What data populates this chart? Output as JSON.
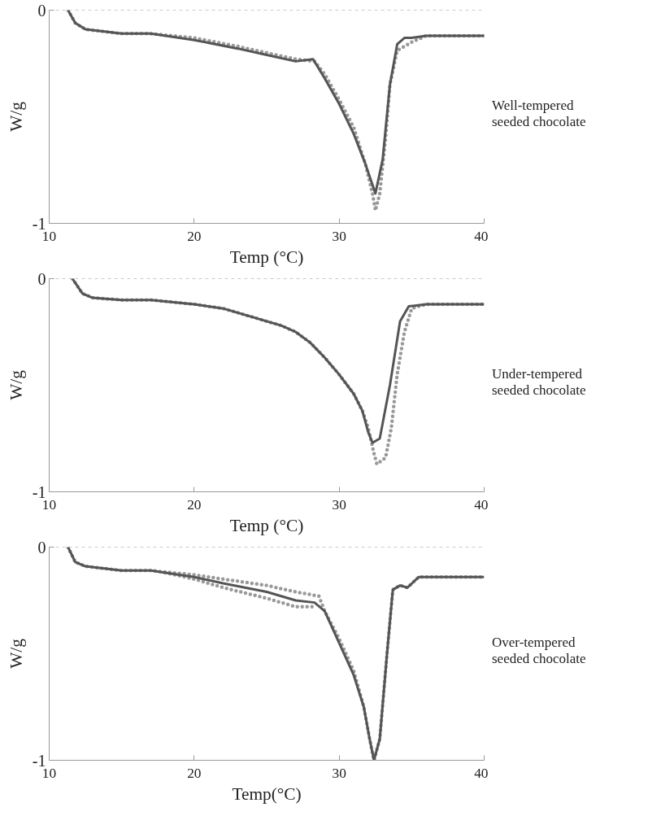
{
  "chart_data": [
    {
      "type": "line",
      "xlabel": "Temp (°C)",
      "ylabel": "W/g",
      "xlim": [
        10,
        40
      ],
      "ylim": [
        -1,
        0
      ],
      "xticks": [
        10,
        20,
        30,
        40
      ],
      "yticks": [
        0,
        -1
      ],
      "ref_lines": [
        {
          "axis": "y",
          "value": 0,
          "color": "#999999",
          "line_style": "dashed"
        }
      ],
      "annotations": [
        "Well-tempered\nseeded chocolate"
      ],
      "series": [
        {
          "color": "#999999",
          "line_style": "dotted",
          "x": [
            11.3,
            11.8,
            12.5,
            15,
            17,
            20,
            23,
            25,
            27,
            28.3,
            29,
            30,
            31,
            31.8,
            32.3,
            32.5,
            32.8,
            33.2,
            33.5,
            34,
            34.5,
            35,
            36,
            40
          ],
          "values": [
            0,
            -0.06,
            -0.09,
            -0.11,
            -0.11,
            -0.13,
            -0.17,
            -0.2,
            -0.23,
            -0.24,
            -0.3,
            -0.42,
            -0.55,
            -0.72,
            -0.86,
            -0.94,
            -0.86,
            -0.6,
            -0.35,
            -0.19,
            -0.17,
            -0.15,
            -0.12,
            -0.12
          ]
        },
        {
          "color": "#555555",
          "line_style": "solid",
          "x": [
            11.3,
            11.8,
            12.5,
            15,
            17,
            20,
            23,
            25,
            27,
            28.2,
            29,
            30,
            31,
            31.8,
            32.5,
            33,
            33.5,
            34,
            34.5,
            35,
            36,
            40
          ],
          "values": [
            0,
            -0.06,
            -0.09,
            -0.11,
            -0.11,
            -0.14,
            -0.18,
            -0.21,
            -0.24,
            -0.23,
            -0.32,
            -0.44,
            -0.58,
            -0.72,
            -0.86,
            -0.7,
            -0.35,
            -0.16,
            -0.13,
            -0.13,
            -0.12,
            -0.12
          ]
        }
      ]
    },
    {
      "type": "line",
      "xlabel": "Temp (°C)",
      "ylabel": "W/g",
      "xlim": [
        10,
        40
      ],
      "ylim": [
        -1,
        0
      ],
      "xticks": [
        10,
        20,
        30,
        40
      ],
      "yticks": [
        0,
        -1
      ],
      "ref_lines": [
        {
          "axis": "y",
          "value": 0,
          "color": "#999999",
          "line_style": "dashed"
        }
      ],
      "annotations": [
        "Under-tempered\nseeded chocolate"
      ],
      "series": [
        {
          "color": "#999999",
          "line_style": "dotted",
          "x": [
            11.6,
            12.3,
            13,
            15,
            17,
            20,
            22,
            24,
            26,
            27,
            28,
            29,
            30,
            31,
            31.6,
            32,
            32.4,
            32.6,
            33.2,
            33.6,
            34,
            34.5,
            35,
            36,
            40
          ],
          "values": [
            0,
            -0.07,
            -0.09,
            -0.1,
            -0.1,
            -0.12,
            -0.14,
            -0.18,
            -0.22,
            -0.25,
            -0.3,
            -0.37,
            -0.45,
            -0.54,
            -0.62,
            -0.7,
            -0.82,
            -0.87,
            -0.84,
            -0.7,
            -0.45,
            -0.25,
            -0.14,
            -0.12,
            -0.12
          ]
        },
        {
          "color": "#555555",
          "line_style": "solid",
          "x": [
            11.6,
            12.3,
            13,
            15,
            17,
            20,
            22,
            24,
            26,
            27,
            28,
            29,
            30,
            31,
            31.6,
            32,
            32.3,
            32.8,
            33.5,
            34.2,
            34.8,
            36,
            40
          ],
          "values": [
            0,
            -0.07,
            -0.09,
            -0.1,
            -0.1,
            -0.12,
            -0.14,
            -0.18,
            -0.22,
            -0.25,
            -0.3,
            -0.37,
            -0.45,
            -0.54,
            -0.62,
            -0.72,
            -0.77,
            -0.75,
            -0.5,
            -0.2,
            -0.13,
            -0.12,
            -0.12
          ]
        }
      ]
    },
    {
      "type": "line",
      "xlabel": "Temp(°C)",
      "ylabel": "W/g",
      "xlim": [
        10,
        40
      ],
      "ylim": [
        -1,
        0
      ],
      "xticks": [
        10,
        20,
        30,
        40
      ],
      "yticks": [
        0,
        -1
      ],
      "ref_lines": [
        {
          "axis": "y",
          "value": 0,
          "color": "#999999",
          "line_style": "dashed"
        }
      ],
      "annotations": [
        "Over-tempered\nseeded chocolate"
      ],
      "series": [
        {
          "color": "#999999",
          "line_style": "dotted",
          "x": [
            11.3,
            11.8,
            12.5,
            15,
            17,
            20,
            22,
            25,
            27,
            28.6,
            29,
            30,
            31,
            31.7,
            32.1,
            32.4,
            32.8,
            33.3,
            33.7,
            34.2,
            34.7,
            35.5,
            40
          ],
          "values": [
            0,
            -0.07,
            -0.09,
            -0.11,
            -0.11,
            -0.13,
            -0.15,
            -0.18,
            -0.21,
            -0.23,
            -0.3,
            -0.43,
            -0.58,
            -0.75,
            -0.9,
            -1.0,
            -0.9,
            -0.5,
            -0.2,
            -0.18,
            -0.19,
            -0.14,
            -0.14
          ]
        },
        {
          "color": "#999999",
          "line_style": "dotted",
          "x": [
            18,
            20,
            22,
            25,
            27,
            28.4
          ],
          "values": [
            -0.12,
            -0.15,
            -0.19,
            -0.24,
            -0.28,
            -0.28
          ]
        },
        {
          "color": "#555555",
          "line_style": "solid",
          "x": [
            11.3,
            11.8,
            12.5,
            15,
            17,
            20,
            22,
            25,
            27,
            28.3,
            29,
            30,
            31,
            31.7,
            32.1,
            32.4,
            32.8,
            33.3,
            33.7,
            34.2,
            34.7,
            35.5,
            40
          ],
          "values": [
            0,
            -0.07,
            -0.09,
            -0.11,
            -0.11,
            -0.14,
            -0.17,
            -0.21,
            -0.25,
            -0.26,
            -0.3,
            -0.45,
            -0.6,
            -0.75,
            -0.9,
            -1.0,
            -0.9,
            -0.5,
            -0.2,
            -0.18,
            -0.19,
            -0.14,
            -0.14
          ]
        }
      ]
    }
  ]
}
